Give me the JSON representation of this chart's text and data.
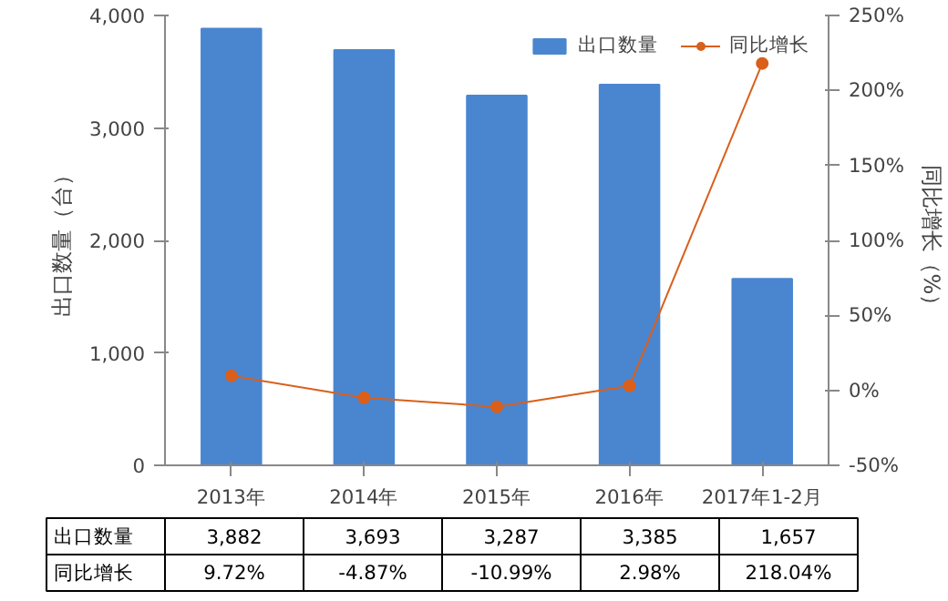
{
  "chart_data": {
    "type": "bar",
    "categories": [
      "2013年",
      "2014年",
      "2015年",
      "2016年",
      "2017年1-2月"
    ],
    "ylabel": "出口数量（台）",
    "y2label": "同比增长（%）",
    "ylim": [
      0,
      4000
    ],
    "yticks": [
      0,
      {
        "value": 1000,
        "label": "1,000"
      },
      {
        "value": 2000,
        "label": "2,000"
      },
      {
        "value": 3000,
        "label": "3,000"
      },
      {
        "value": 4000,
        "label": "4,000"
      }
    ],
    "y2lim": [
      -50,
      250
    ],
    "y2ticks": [
      {
        "value": -50,
        "label": "-50%"
      },
      {
        "value": 0,
        "label": "0%"
      },
      {
        "value": 50,
        "label": "50%"
      },
      {
        "value": 100,
        "label": "100%"
      },
      {
        "value": 150,
        "label": "150%"
      },
      {
        "value": 200,
        "label": "200%"
      },
      {
        "value": 250,
        "label": "250%"
      }
    ],
    "legend": "top right",
    "grid": false,
    "series": [
      {
        "name": "出口数量",
        "color": "#4a86d0",
        "values": [
          3882,
          3693,
          3287,
          3385,
          1657
        ],
        "value_labels": [
          "3,882",
          "3,693",
          "3,287",
          "3,385",
          "1,657"
        ]
      },
      {
        "name": "同比增长",
        "type": "line",
        "axis": "y2",
        "color": "#d95f1b",
        "marker": "circle",
        "values": [
          9.72,
          -4.87,
          -10.99,
          2.98,
          218.04
        ],
        "value_labels": [
          "9.72%",
          "-4.87%",
          "-10.99%",
          "2.98%",
          "218.04%"
        ]
      }
    ]
  }
}
